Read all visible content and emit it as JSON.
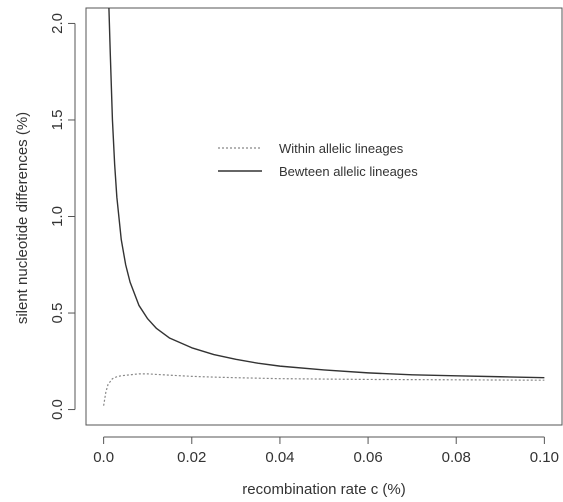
{
  "chart_data": {
    "type": "line",
    "title": "",
    "xlabel": "recombination rate c (%)",
    "ylabel": "silent nucleotide differences (%)",
    "xlim": [
      -0.004,
      0.104
    ],
    "ylim": [
      -0.08,
      2.08
    ],
    "x_ticks": [
      0.0,
      0.02,
      0.04,
      0.06,
      0.08,
      0.1
    ],
    "x_tick_labels": [
      "0.0",
      "0.02",
      "0.04",
      "0.06",
      "0.08",
      "0.10"
    ],
    "y_ticks": [
      0.0,
      0.5,
      1.0,
      1.5,
      2.0
    ],
    "y_tick_labels": [
      "0.0",
      "0.5",
      "1.0",
      "1.5",
      "2.0"
    ],
    "grid": false,
    "legend_position": "center",
    "series": [
      {
        "name": "Within allelic lineages",
        "style": "dotted",
        "color": "#888888",
        "x": [
          0.0,
          0.0005,
          0.001,
          0.002,
          0.003,
          0.004,
          0.006,
          0.008,
          0.01,
          0.012,
          0.015,
          0.02,
          0.025,
          0.03,
          0.04,
          0.05,
          0.06,
          0.07,
          0.08,
          0.09,
          0.1
        ],
        "y": [
          0.02,
          0.09,
          0.13,
          0.16,
          0.17,
          0.175,
          0.18,
          0.185,
          0.185,
          0.182,
          0.178,
          0.172,
          0.168,
          0.165,
          0.16,
          0.158,
          0.156,
          0.155,
          0.154,
          0.153,
          0.152
        ]
      },
      {
        "name": "Bewteen allelic lineages",
        "style": "solid",
        "color": "#333333",
        "x": [
          0.0012,
          0.0015,
          0.002,
          0.0025,
          0.003,
          0.004,
          0.005,
          0.006,
          0.008,
          0.01,
          0.012,
          0.015,
          0.02,
          0.025,
          0.03,
          0.035,
          0.04,
          0.05,
          0.06,
          0.07,
          0.08,
          0.09,
          0.1
        ],
        "y": [
          2.08,
          1.85,
          1.5,
          1.27,
          1.1,
          0.88,
          0.75,
          0.66,
          0.54,
          0.47,
          0.42,
          0.37,
          0.32,
          0.285,
          0.26,
          0.24,
          0.225,
          0.205,
          0.19,
          0.18,
          0.175,
          0.17,
          0.165
        ]
      }
    ]
  }
}
